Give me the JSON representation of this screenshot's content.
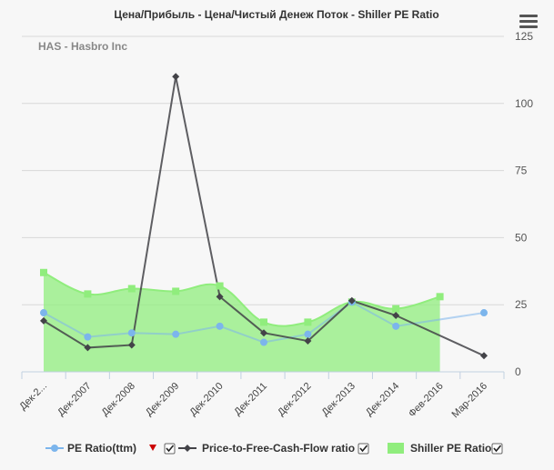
{
  "chart_data": {
    "type": "line",
    "title": "Цена/Прибыль - Цена/Чистый Денеж Поток - Shiller PE Ratio",
    "subtitle": "HAS - Hasbro Inc",
    "categories": [
      "Дек-2...",
      "Дек-2007",
      "Дек-2008",
      "Дек-2009",
      "Дек-2010",
      "Дек-2011",
      "Дек-2012",
      "Дек-2013",
      "Дек-2014",
      "Фев-2016",
      "Мар-2016"
    ],
    "yticks": [
      0,
      25,
      50,
      75,
      100,
      125
    ],
    "ylim": [
      0,
      125
    ],
    "y_axis_side": "right",
    "grid": true,
    "legend_position": "bottom",
    "series": [
      {
        "name": "PE Ratio(ttm)",
        "type": "line",
        "color": "#7cb5ec",
        "marker": "circle",
        "values": [
          22,
          13,
          14.5,
          14,
          17,
          11,
          14,
          26,
          17,
          null,
          22
        ]
      },
      {
        "name": "Price-to-Free-Cash-Flow ratio",
        "type": "line",
        "color": "#434348",
        "marker": "diamond",
        "values": [
          19,
          9,
          10,
          110,
          28,
          14.5,
          11.5,
          26.5,
          21,
          null,
          6
        ]
      },
      {
        "name": "Shiller PE Ratio",
        "type": "area",
        "color": "#90ed7d",
        "marker": "square",
        "values": [
          37,
          29,
          31,
          30,
          32,
          18.5,
          18.5,
          26,
          23.5,
          28,
          null
        ]
      }
    ]
  },
  "ui": {
    "menu_icon": "hamburger-menu-icon",
    "legend_sort_icon": "triangle-down-icon",
    "legend_checkbox_icon": "checkbox-checked-icon",
    "sort_color": "#cc0000"
  }
}
